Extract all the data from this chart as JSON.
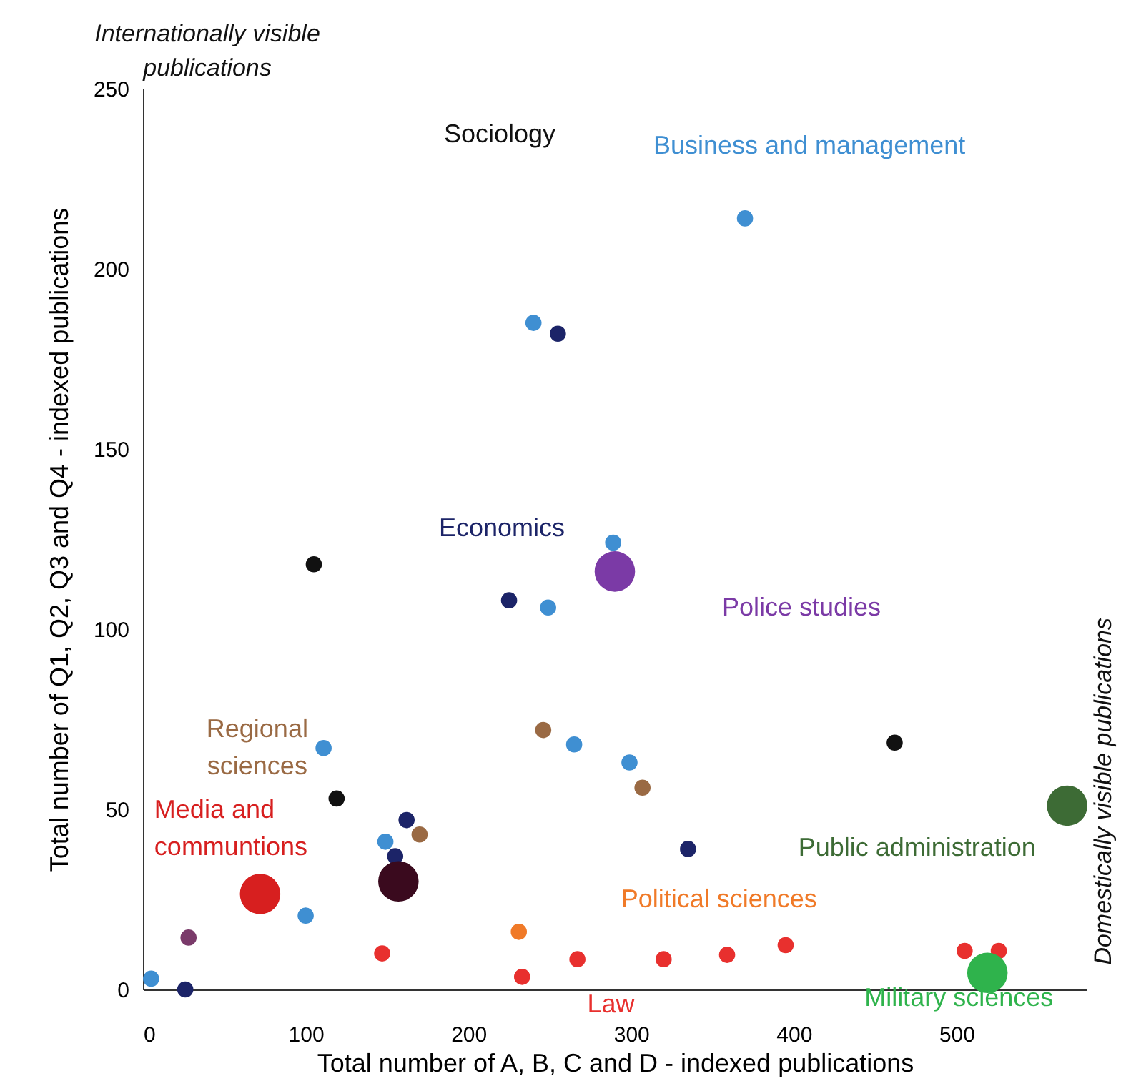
{
  "chart_data": {
    "type": "bubble",
    "xlabel": "Total number of A, B, C and D - indexed publications",
    "ylabel": "Total number of Q1, Q2, Q3 and Q4 - indexed publications",
    "xlim": [
      0,
      580
    ],
    "xticks": [
      0,
      100,
      200,
      300,
      400,
      500
    ],
    "ylim": [
      0,
      250
    ],
    "yticks": [
      0,
      50,
      100,
      150,
      200,
      250
    ],
    "grid": false,
    "legend": false,
    "marker": "circle",
    "annotations": [
      "Internationally visible\npublications",
      "Domestically visible publications"
    ],
    "series": [
      {
        "name": "Sociology",
        "color": "#111111",
        "x": [
          105,
          119,
          462
        ],
        "values": [
          118,
          53,
          68.5
        ],
        "sizes": [
          0.16,
          0.16,
          0.16
        ]
      },
      {
        "name": "Business and management",
        "color": "#3f8fd2",
        "x": [
          370,
          240,
          289,
          249,
          111,
          265,
          299,
          149,
          100,
          5
        ],
        "values": [
          214,
          185,
          124,
          106,
          67,
          68,
          63,
          41,
          20.5,
          3
        ],
        "sizes": [
          0.16,
          0.16,
          0.16,
          0.16,
          0.16,
          0.16,
          0.16,
          0.16,
          0.16,
          0.16
        ]
      },
      {
        "name": "Economics",
        "color": "#1c2468",
        "x": [
          225,
          255,
          335,
          162,
          155,
          26
        ],
        "values": [
          108,
          182,
          39,
          47,
          37,
          0
        ],
        "sizes": [
          0.16,
          0.16,
          0.16,
          0.16,
          0.16,
          0.16
        ]
      },
      {
        "name": "Regional\nsciences",
        "color": "#9a6a44",
        "x": [
          246,
          307,
          170
        ],
        "values": [
          72,
          56,
          43
        ],
        "sizes": [
          0.16,
          0.16,
          0.16
        ]
      },
      {
        "name": "Law",
        "color": "#e8302e",
        "x": [
          147,
          233,
          267,
          320,
          359,
          395,
          505,
          526
        ],
        "values": [
          10,
          3.5,
          8.4,
          8.4,
          9.6,
          12.3,
          10.7,
          10.7
        ],
        "sizes": [
          0.16,
          0.16,
          0.16,
          0.16,
          0.16,
          0.16,
          0.16,
          0.16
        ]
      },
      {
        "name": "Political sciences",
        "color": "#f07a28",
        "x": [
          231
        ],
        "values": [
          16
        ],
        "sizes": [
          0.16
        ]
      },
      {
        "name": "Police studies",
        "color": "#7b3aa6",
        "x": [
          290
        ],
        "values": [
          116
        ],
        "sizes": [
          1
        ]
      },
      {
        "name": "Public administration",
        "color": "#3d6b35",
        "x": [
          568
        ],
        "values": [
          51
        ],
        "sizes": [
          1
        ]
      },
      {
        "name": "Military sciences",
        "color": "#2fb34c",
        "x": [
          519
        ],
        "values": [
          4.6
        ],
        "sizes": [
          1
        ]
      },
      {
        "name": "Media and\ncommuntions",
        "color": "#d71f1f",
        "x": [
          72
        ],
        "values": [
          26.5
        ],
        "sizes": [
          1
        ]
      },
      {
        "color": "#3a0a1e",
        "x": [
          157
        ],
        "values": [
          30
        ],
        "sizes": [
          1
        ]
      },
      {
        "color": "#7a3a6a",
        "x": [
          28
        ],
        "values": [
          14.4
        ],
        "sizes": [
          0.16
        ]
      }
    ]
  }
}
